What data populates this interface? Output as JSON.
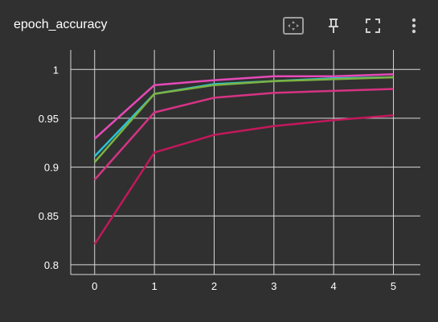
{
  "card": {
    "title": "epoch_accuracy",
    "buttons": [
      {
        "name": "fit-domain-button",
        "icon": "fit-to-data-icon"
      },
      {
        "name": "pin-button",
        "icon": "pin-icon"
      },
      {
        "name": "fullscreen-button",
        "icon": "fullscreen-icon"
      },
      {
        "name": "more-options-button",
        "icon": "more-vert-icon"
      }
    ]
  },
  "colors": {
    "background": "#303030",
    "grid": "#d9d9d9",
    "text": "#ffffff"
  },
  "chart_data": {
    "type": "line",
    "title": "epoch_accuracy",
    "x": [
      0,
      1,
      2,
      3,
      4,
      5
    ],
    "x_tick_labels": [
      "0",
      "1",
      "2",
      "3",
      "4",
      "5"
    ],
    "y_tick_values": [
      0.8,
      0.85,
      0.9,
      0.95,
      1
    ],
    "y_tick_labels": [
      "0.8",
      "0.85",
      "0.9",
      "0.95",
      "1"
    ],
    "xlim": [
      -0.4,
      5.45
    ],
    "ylim": [
      0.79,
      1.02
    ],
    "grid": true,
    "series": [
      {
        "color": "#c2185b",
        "values": [
          0.821,
          0.915,
          0.933,
          0.942,
          0.948,
          0.953
        ]
      },
      {
        "color": "#d63384",
        "values": [
          0.887,
          0.956,
          0.971,
          0.976,
          0.978,
          0.98
        ]
      },
      {
        "color": "#26c6da",
        "values": [
          0.911,
          0.975,
          0.985,
          0.988,
          0.991,
          0.992
        ]
      },
      {
        "color": "#7cb342",
        "values": [
          0.905,
          0.975,
          0.984,
          0.988,
          0.99,
          0.992
        ]
      },
      {
        "color": "#e64ab8",
        "values": [
          0.929,
          0.984,
          0.989,
          0.993,
          0.993,
          0.995
        ]
      }
    ]
  }
}
